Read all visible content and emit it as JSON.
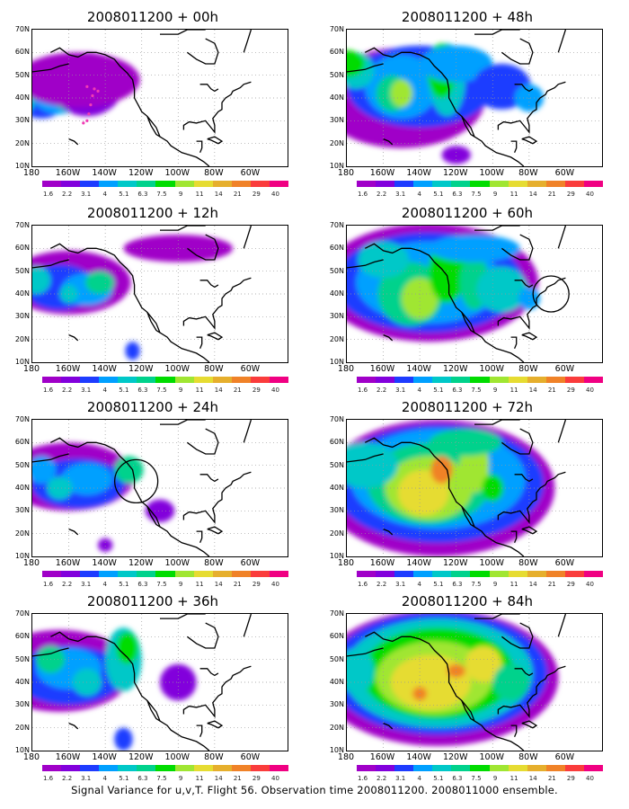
{
  "caption": "Signal Variance for u,v,T. Flight 56. Observation time 2008011200. 2008011000 ensemble.",
  "lat_labels": [
    "70N",
    "60N",
    "50N",
    "40N",
    "30N",
    "20N",
    "10N"
  ],
  "lon_labels": [
    "180",
    "160W",
    "140W",
    "120W",
    "100W",
    "80W",
    "60W"
  ],
  "colorbar": {
    "labels": [
      "1.6",
      "2.2",
      "3.1",
      "4",
      "5.1",
      "6.3",
      "7.5",
      "9",
      "11",
      "14",
      "21",
      "29",
      "40"
    ],
    "colors": [
      "#a000c8",
      "#8200dc",
      "#1e3cff",
      "#00a0ff",
      "#00c8c8",
      "#00d28c",
      "#00dc00",
      "#a0e632",
      "#e6dc32",
      "#e6af2d",
      "#f08228",
      "#fa3c3c",
      "#f00082"
    ]
  },
  "panels": [
    {
      "title": "2008011200 + 00h"
    },
    {
      "title": "2008011200 + 48h"
    },
    {
      "title": "2008011200 + 12h"
    },
    {
      "title": "2008011200 + 60h"
    },
    {
      "title": "2008011200 + 24h"
    },
    {
      "title": "2008011200 + 72h"
    },
    {
      "title": "2008011200 + 36h"
    },
    {
      "title": "2008011200 + 84h"
    }
  ]
}
